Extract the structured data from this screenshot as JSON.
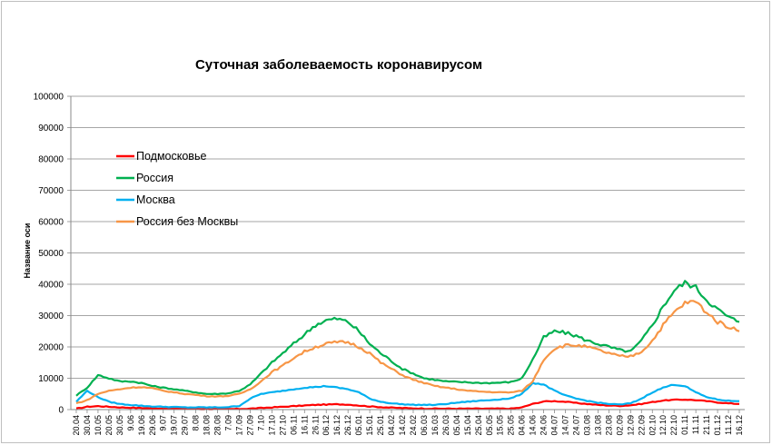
{
  "chart_data": {
    "type": "line",
    "title": "Суточная заболеваемость коронавирусом",
    "xlabel": "",
    "ylabel": "Название оси",
    "ylim": [
      0,
      100000
    ],
    "yticks": [
      "0",
      "10000",
      "20000",
      "30000",
      "40000",
      "50000",
      "60000",
      "70000",
      "80000",
      "90000",
      "100000"
    ],
    "grid": true,
    "legend_position": "top-left",
    "x": [
      "20.04",
      "30.04",
      "10.05",
      "20.05",
      "30.05",
      "9.06",
      "19.06",
      "29.06",
      "9.07",
      "19.07",
      "29.07",
      "8.08",
      "18.08",
      "28.08",
      "7.09",
      "17.09",
      "27.09",
      "7.10",
      "17.10",
      "27.10",
      "06.11",
      "16.11",
      "26.11",
      "06.12",
      "16.12",
      "26.12",
      "05.01",
      "15.01",
      "25.01",
      "04.02",
      "14.02",
      "24.02",
      "06.03",
      "16.03",
      "26.03",
      "05.04",
      "15.04",
      "25.04",
      "05.05",
      "15.05",
      "25.05",
      "04.06",
      "14.06",
      "24.06",
      "04.07",
      "14.07",
      "24.07",
      "03.08",
      "13.08",
      "23.08",
      "02.09",
      "12.09",
      "22.09",
      "02.10",
      "12.10",
      "22.10",
      "01.11",
      "11.11",
      "21.11",
      "01.12",
      "11.12",
      "16.12"
    ],
    "series": [
      {
        "name": "Подмосковье",
        "color": "#ff0000",
        "values": [
          300,
          900,
          1100,
          900,
          700,
          600,
          500,
          400,
          350,
          300,
          250,
          200,
          180,
          170,
          150,
          200,
          300,
          500,
          700,
          900,
          1100,
          1300,
          1500,
          1600,
          1700,
          1600,
          1300,
          1000,
          800,
          600,
          500,
          400,
          350,
          300,
          300,
          300,
          300,
          300,
          300,
          300,
          300,
          700,
          1800,
          2600,
          2700,
          2500,
          2100,
          1800,
          1500,
          1300,
          1200,
          1400,
          1800,
          2400,
          2900,
          3100,
          3200,
          3000,
          2700,
          2300,
          2000,
          1800
        ]
      },
      {
        "name": "Россия",
        "color": "#00b050",
        "values": [
          4500,
          7000,
          11000,
          10000,
          9000,
          9000,
          8500,
          7500,
          7000,
          6500,
          6000,
          5500,
          5000,
          5000,
          5200,
          6000,
          8000,
          11500,
          15000,
          18000,
          21000,
          24000,
          27000,
          28500,
          29000,
          28000,
          25000,
          21000,
          18000,
          15500,
          13000,
          11500,
          10000,
          9500,
          9000,
          8800,
          8700,
          8500,
          8500,
          8600,
          8800,
          10000,
          16000,
          23000,
          25000,
          24500,
          23500,
          22000,
          21000,
          20000,
          19000,
          18500,
          22000,
          27000,
          33000,
          38000,
          40500,
          39000,
          35000,
          32000,
          29500,
          28000
        ]
      },
      {
        "name": "Москва",
        "color": "#00b0f0",
        "values": [
          2500,
          6000,
          4000,
          2500,
          1800,
          1500,
          1200,
          1000,
          900,
          800,
          700,
          700,
          700,
          700,
          800,
          1200,
          3500,
          5000,
          5500,
          6000,
          6500,
          7000,
          7200,
          7500,
          7000,
          6500,
          5500,
          3500,
          2500,
          2000,
          1700,
          1500,
          1500,
          1500,
          1800,
          2200,
          2500,
          2800,
          3000,
          3300,
          3600,
          5000,
          8500,
          8000,
          6000,
          4500,
          3500,
          2800,
          2200,
          1800,
          1600,
          2000,
          3500,
          5500,
          7000,
          8000,
          7500,
          5500,
          4000,
          3200,
          2800,
          2700
        ]
      },
      {
        "name": "Россия без Москвы",
        "color": "#f79646",
        "values": [
          2000,
          3000,
          5000,
          6000,
          6500,
          7000,
          7200,
          6800,
          6000,
          5500,
          5000,
          4700,
          4300,
          4200,
          4400,
          5000,
          6500,
          9000,
          12000,
          14000,
          16500,
          18500,
          20000,
          21000,
          21500,
          21500,
          20000,
          18000,
          15000,
          13000,
          11000,
          9500,
          8500,
          7500,
          7000,
          6500,
          6000,
          5800,
          5600,
          5500,
          5500,
          6000,
          9000,
          16000,
          19500,
          20500,
          20500,
          20000,
          19000,
          18000,
          17000,
          17000,
          18500,
          22000,
          27000,
          31000,
          34000,
          34500,
          31000,
          28000,
          26500,
          25000
        ]
      }
    ]
  }
}
